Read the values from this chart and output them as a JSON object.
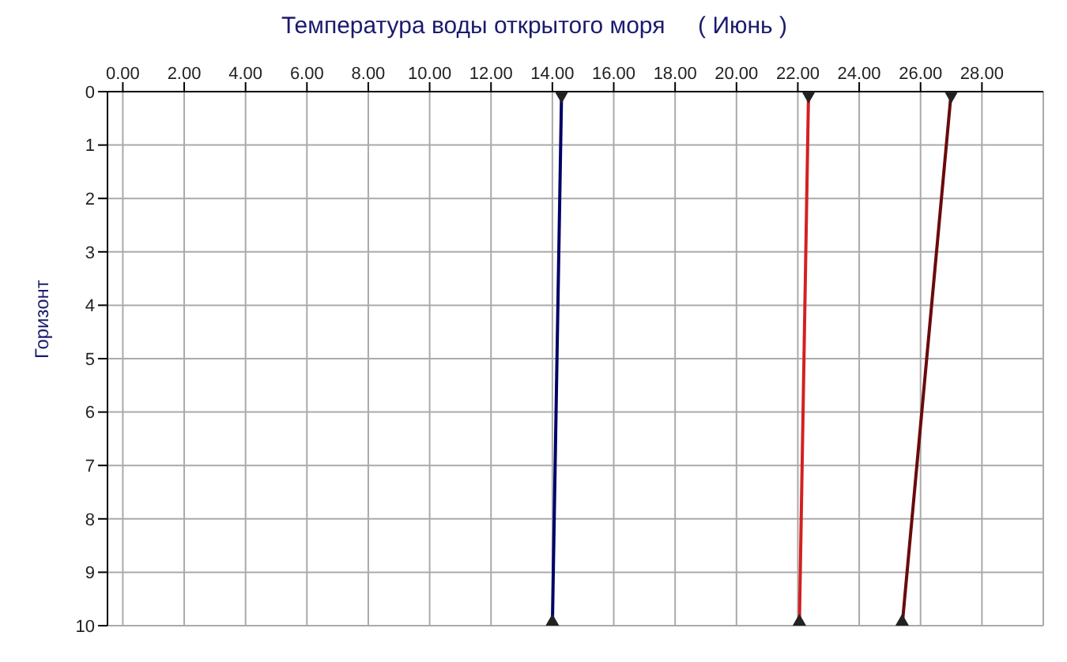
{
  "chart_data": {
    "type": "line",
    "title": "Температура воды открытого моря     ( Июнь )",
    "ylabel": "Горизонт",
    "xlim": [
      -0.5,
      30
    ],
    "xticks": [
      {
        "value": 0,
        "label": "0.00"
      },
      {
        "value": 2,
        "label": "2.00"
      },
      {
        "value": 4,
        "label": "4.00"
      },
      {
        "value": 6,
        "label": "6.00"
      },
      {
        "value": 8,
        "label": "8.00"
      },
      {
        "value": 10,
        "label": "10.00"
      },
      {
        "value": 12,
        "label": "12.00"
      },
      {
        "value": 14,
        "label": "14.00"
      },
      {
        "value": 16,
        "label": "16.00"
      },
      {
        "value": 18,
        "label": "18.00"
      },
      {
        "value": 20,
        "label": "20.00"
      },
      {
        "value": 22,
        "label": "22.00"
      },
      {
        "value": 24,
        "label": "24.00"
      },
      {
        "value": 26,
        "label": "26.00"
      },
      {
        "value": 28,
        "label": "28.00"
      }
    ],
    "ylim": [
      10,
      0
    ],
    "yticks": [
      0,
      1,
      2,
      3,
      4,
      5,
      6,
      7,
      8,
      9,
      10
    ],
    "grid": true,
    "marker": "diamond",
    "line_style": "solid",
    "series": [
      {
        "color": "#000066",
        "x": [
          14.3,
          14.0
        ],
        "values": [
          0,
          10
        ]
      },
      {
        "color": "#d42020",
        "x": [
          22.35,
          22.05
        ],
        "values": [
          0,
          10
        ]
      },
      {
        "color": "#6a0a0a",
        "x": [
          27.0,
          25.4
        ],
        "values": [
          0,
          10
        ]
      }
    ]
  }
}
